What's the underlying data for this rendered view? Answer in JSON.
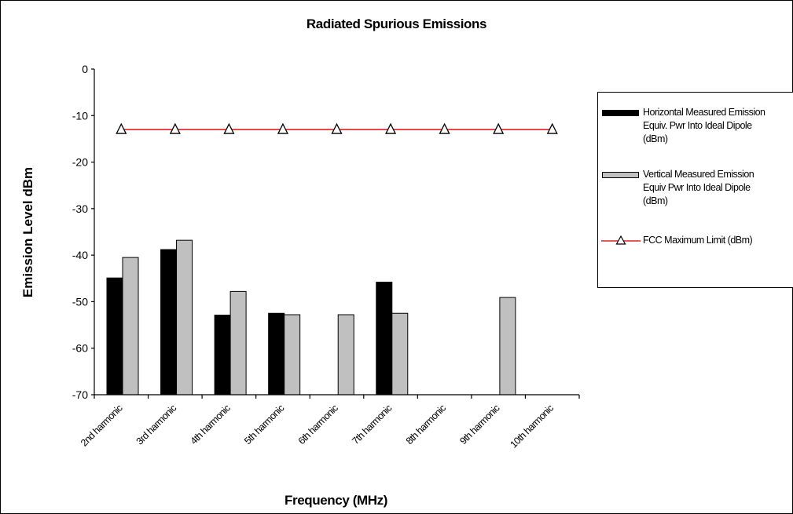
{
  "chart_data": {
    "type": "bar",
    "title": "Radiated Spurious Emissions",
    "xlabel": "Frequency (MHz)",
    "ylabel": "Emission Level dBm",
    "ylim": [
      -70,
      0
    ],
    "yticks": [
      "0",
      "-10",
      "-20",
      "-30",
      "-40",
      "-50",
      "-60",
      "-70"
    ],
    "categories": [
      "2nd harmonic",
      "3rd harmonic",
      "4th harmonic",
      "5th harmonic",
      "6th harmonic",
      "7th harmonic",
      "8th harmonic",
      "9th harmonic",
      "10th harmonic"
    ],
    "series": [
      {
        "name": "Horizontal Measured Emission Equiv. Pwr Into Ideal Dipole (dBm)",
        "type": "bar",
        "color": "#000000",
        "values": [
          -44.9,
          -38.8,
          -52.9,
          -52.5,
          null,
          -45.8,
          null,
          null,
          null
        ]
      },
      {
        "name": "Vertical Measured Emission Equiv Pwr Into Ideal Dipole (dBm)",
        "type": "bar",
        "color": "#c0c0c0",
        "values": [
          -40.5,
          -36.8,
          -47.8,
          -52.8,
          -52.8,
          -52.5,
          null,
          -49.1,
          null
        ]
      },
      {
        "name": "FCC Maximum Limit (dBm)",
        "type": "line",
        "color": "#e02020",
        "values": [
          -13,
          -13,
          -13,
          -13,
          -13,
          -13,
          -13,
          -13,
          -13
        ]
      }
    ],
    "legend": {
      "position": "right",
      "labels": [
        "Horizontal Measured Emission\nEquiv. Pwr Into Ideal Dipole\n(dBm)",
        "Vertical Measured Emission\nEquiv Pwr Into Ideal Dipole\n(dBm)",
        "FCC Maximum Limit (dBm)"
      ]
    },
    "grid": false
  }
}
